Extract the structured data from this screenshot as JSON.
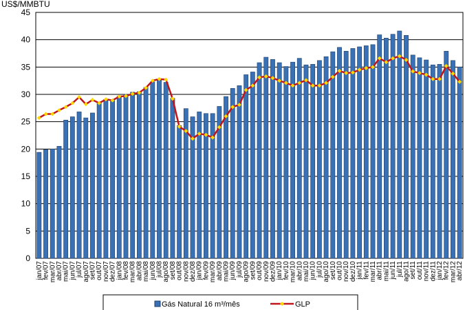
{
  "chart_data": {
    "type": "bar_line",
    "unit_label": "US$/MMBTU",
    "categories": [
      "jan/07",
      "fev/07",
      "mar/07",
      "abr/07",
      "mai/07",
      "jun/07",
      "jul/07",
      "ago/07",
      "set/07",
      "out/07",
      "nov/07",
      "dez/07",
      "jan/08",
      "fev/08",
      "mar/08",
      "abr/08",
      "mai/08",
      "jun/08",
      "jul/08",
      "ago/08",
      "set/08",
      "out/08",
      "nov/08",
      "dez/08",
      "jan/09",
      "fev/09",
      "mar/09",
      "abr/09",
      "mai/09",
      "jun/09",
      "jul/09",
      "ago/09",
      "set/09",
      "out/09",
      "nov/09",
      "dez/09",
      "jan/10",
      "fev/10",
      "mar/10",
      "abr/10",
      "mai/10",
      "jun/10",
      "jul/10",
      "ago/10",
      "set/10",
      "out/10",
      "nov/10",
      "dez/10",
      "jan/11",
      "fev/11",
      "mar/11",
      "abr/11",
      "mai/11",
      "jun/11",
      "jul/11",
      "ago/11",
      "set/11",
      "out/11",
      "nov/11",
      "dez/11",
      "jan/12",
      "fev/12",
      "mar/12",
      "abr/12"
    ],
    "series": [
      {
        "name": "Gás Natural 16 m³/mês",
        "type": "bar",
        "color": "#3a70b4",
        "values": [
          19.4,
          19.9,
          20.0,
          20.5,
          25.3,
          25.9,
          26.8,
          25.7,
          26.6,
          28.4,
          29.1,
          28.9,
          29.7,
          30.0,
          30.4,
          30.5,
          31.3,
          32.3,
          32.6,
          32.2,
          29.3,
          24.3,
          27.4,
          25.9,
          26.8,
          26.5,
          26.5,
          27.8,
          29.6,
          31.1,
          31.6,
          33.6,
          34.1,
          35.8,
          36.8,
          36.4,
          35.8,
          35.1,
          35.9,
          36.6,
          35.4,
          35.5,
          36.2,
          36.9,
          37.8,
          38.6,
          37.9,
          38.4,
          38.7,
          38.9,
          39.1,
          40.9,
          40.3,
          41.0,
          41.6,
          40.8,
          37.2,
          36.7,
          36.3,
          35.4,
          35.5,
          37.9,
          36.2,
          35.0
        ]
      },
      {
        "name": "GLP",
        "type": "line",
        "color": "#c0151b",
        "marker_color": "#ffd700",
        "values": [
          25.7,
          26.4,
          26.4,
          27.1,
          27.7,
          28.4,
          29.5,
          28.2,
          29.0,
          28.4,
          29.1,
          28.9,
          29.6,
          29.7,
          30.1,
          30.3,
          31.2,
          32.5,
          32.8,
          32.7,
          29.2,
          24.1,
          23.3,
          21.9,
          22.8,
          22.6,
          22.1,
          24.0,
          26.0,
          27.7,
          28.1,
          30.8,
          31.6,
          33.1,
          33.3,
          33.0,
          32.5,
          32.1,
          31.6,
          32.1,
          32.6,
          31.6,
          31.6,
          32.1,
          33.2,
          34.3,
          33.9,
          34.0,
          34.5,
          34.8,
          35.0,
          36.6,
          35.9,
          36.6,
          37.0,
          36.3,
          34.2,
          33.9,
          33.6,
          32.8,
          32.8,
          35.2,
          33.8,
          32.3
        ]
      }
    ],
    "ylim": [
      0,
      45
    ],
    "yticks": [
      0,
      5,
      10,
      15,
      20,
      25,
      30,
      35,
      40,
      45
    ],
    "grid": true
  }
}
